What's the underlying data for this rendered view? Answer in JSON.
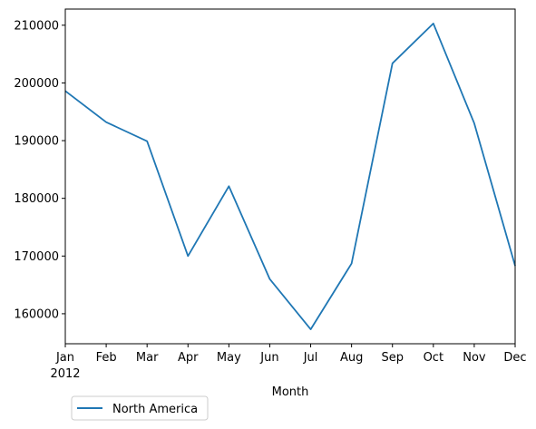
{
  "chart_data": {
    "type": "line",
    "title": "",
    "xlabel": "Month",
    "ylabel": "",
    "categories": [
      "Jan",
      "Feb",
      "Mar",
      "Apr",
      "May",
      "Jun",
      "Jul",
      "Aug",
      "Sep",
      "Oct",
      "Nov",
      "Dec"
    ],
    "year_label": "2012",
    "yticks": [
      160000,
      170000,
      180000,
      190000,
      200000,
      210000
    ],
    "ylim": [
      154800,
      212800
    ],
    "grid": false,
    "legend_position": "bottom-left, below axes",
    "series": [
      {
        "name": "North America",
        "color": "#1f77b4",
        "values": [
          198600,
          193200,
          189900,
          170000,
          182100,
          166000,
          157300,
          168700,
          203400,
          210300,
          193000,
          168300
        ]
      }
    ]
  }
}
